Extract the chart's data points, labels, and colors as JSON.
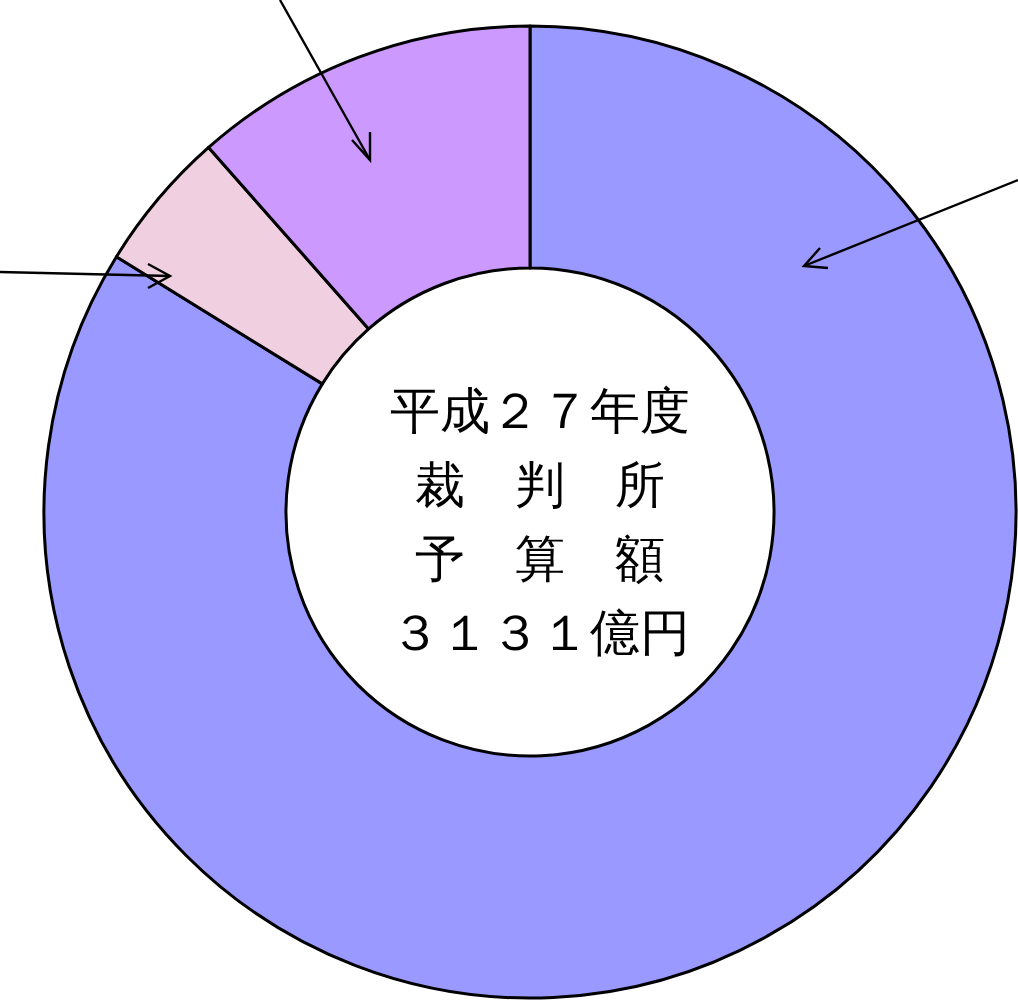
{
  "chart_data": {
    "type": "donut",
    "title": "平成２７年度",
    "annotations": [
      "裁　判　所",
      "予　算　額",
      "３１３１億円"
    ],
    "categories": [
      null,
      null,
      null
    ],
    "values": [
      83.8,
      4.7,
      11.5
    ],
    "colors": [
      "#9999ff",
      "#f0d0e0",
      "#cc99ff"
    ]
  }
}
